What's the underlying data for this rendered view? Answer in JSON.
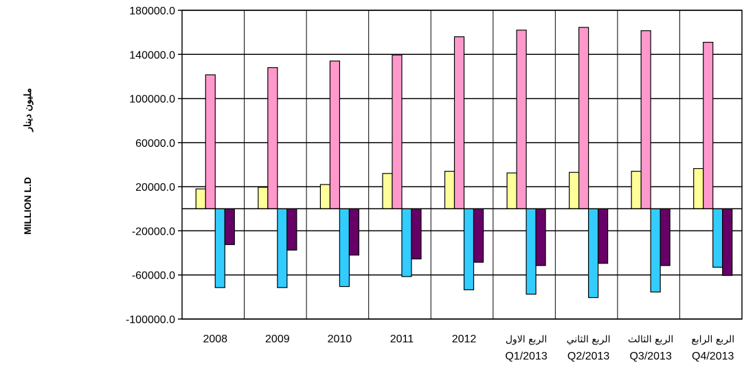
{
  "chart_data": {
    "type": "bar",
    "title": "",
    "ylabel_en": "MILLION L.D",
    "ylabel_ar": "مليون دينار",
    "ylim": [
      -100000,
      180000
    ],
    "yticks": [
      180000,
      140000,
      100000,
      60000,
      20000,
      -20000,
      -60000,
      -100000
    ],
    "ytick_labels": [
      "180000.0",
      "140000.0",
      "100000.0",
      "60000.0",
      "20000.0",
      "-20000.0",
      "-60000.0",
      "-100000.0"
    ],
    "categories": [
      {
        "line1": "2008",
        "line2": ""
      },
      {
        "line1": "2009",
        "line2": ""
      },
      {
        "line1": "2010",
        "line2": ""
      },
      {
        "line1": "2011",
        "line2": ""
      },
      {
        "line1": "2012",
        "line2": ""
      },
      {
        "line1": "الربع الاول",
        "line2": "Q1/2013"
      },
      {
        "line1": "الربع الثاني",
        "line2": "Q2/2013"
      },
      {
        "line1": "الربع الثالث",
        "line2": "Q3/2013"
      },
      {
        "line1": "الربع الرابع",
        "line2": "Q4/2013"
      }
    ],
    "grid": true,
    "legend": "none",
    "series": [
      {
        "color": "#ffff99",
        "values": [
          18000,
          19500,
          22000,
          32000,
          34000,
          32500,
          33000,
          34000,
          36500
        ]
      },
      {
        "color": "#ff99cc",
        "values": [
          121500,
          128000,
          134000,
          139500,
          156000,
          162000,
          164500,
          161500,
          151000
        ]
      },
      {
        "color": "#33ccff",
        "values": [
          -71500,
          -71500,
          -70500,
          -61500,
          -73500,
          -77500,
          -80500,
          -75500,
          -53000
        ]
      },
      {
        "color": "#660066",
        "values": [
          -32500,
          -37500,
          -42000,
          -45500,
          -48500,
          -51500,
          -49500,
          -51500,
          -60500
        ]
      }
    ]
  }
}
